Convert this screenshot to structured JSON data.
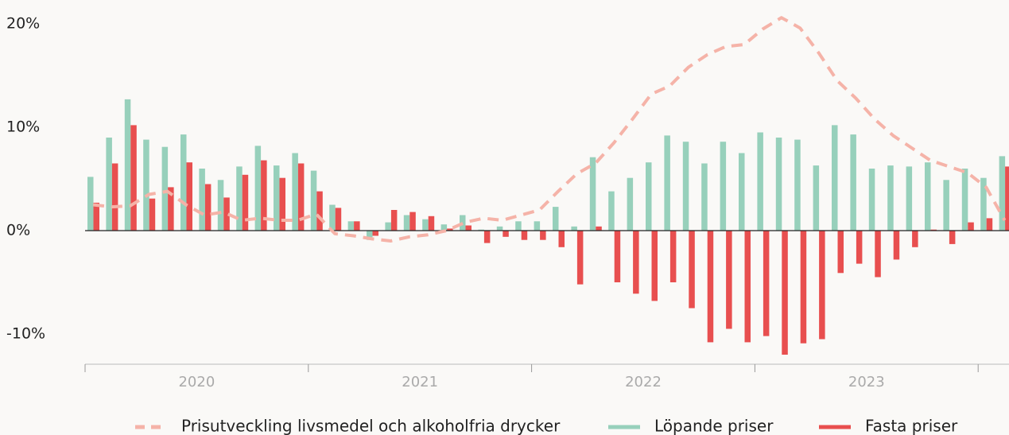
{
  "chart_data": {
    "type": "bar_line",
    "categories": [
      null,
      null,
      null,
      null,
      null,
      null,
      null,
      null,
      null,
      null,
      null,
      null,
      null,
      null,
      null,
      null,
      null,
      null,
      null,
      null,
      null,
      null,
      null,
      null,
      null,
      null,
      null,
      null,
      null,
      null,
      null,
      null,
      null,
      null,
      null,
      null,
      null,
      null,
      null,
      null,
      null,
      null,
      null,
      null,
      null,
      null,
      null,
      null,
      null,
      null
    ],
    "groups": [
      "2020",
      "2021",
      "2022",
      "2023"
    ],
    "series": [
      {
        "name": "Prisutveckling livsmedel och alkoholfria drycker",
        "type": "line",
        "color": "#f5b3a8",
        "values": [
          2.5,
          2.3,
          2.4,
          3.5,
          3.8,
          2.5,
          1.5,
          1.8,
          1.0,
          1.2,
          1.0,
          1.0,
          1.6,
          -0.3,
          -0.5,
          -0.8,
          -1.0,
          -0.6,
          -0.4,
          0.0,
          0.8,
          1.2,
          1.0,
          1.5,
          2.0,
          3.8,
          5.5,
          6.5,
          8.5,
          10.8,
          13.2,
          14.0,
          15.8,
          17.0,
          17.8,
          18.0,
          19.5,
          20.6,
          19.6,
          17.2,
          14.5,
          12.8,
          10.8,
          9.2,
          8.0,
          6.8,
          6.2,
          5.6,
          4.2,
          1.0
        ]
      },
      {
        "name": "Löpande priser",
        "type": "bar",
        "color": "#97d0bb",
        "values": [
          5.2,
          9.0,
          12.7,
          8.8,
          8.1,
          9.3,
          6.0,
          4.9,
          6.2,
          8.2,
          6.3,
          7.5,
          5.8,
          2.5,
          0.9,
          -0.9,
          0.8,
          1.5,
          1.1,
          0.6,
          1.5,
          0.1,
          0.4,
          0.9,
          0.9,
          2.3,
          0.4,
          7.1,
          3.8,
          5.1,
          6.6,
          9.2,
          8.6,
          6.5,
          8.6,
          7.5,
          9.5,
          9.0,
          8.8,
          6.3,
          10.2,
          9.3,
          6.0,
          6.3,
          6.2,
          6.6,
          4.9,
          6.0,
          5.1,
          7.2
        ]
      },
      {
        "name": "Fasta priser",
        "type": "bar",
        "color": "#e84f4f",
        "values": [
          2.7,
          6.5,
          10.2,
          3.1,
          4.2,
          6.6,
          4.5,
          3.2,
          5.4,
          6.8,
          5.1,
          6.5,
          3.8,
          2.2,
          0.9,
          -0.5,
          2.0,
          1.8,
          1.4,
          0.2,
          0.5,
          -1.2,
          -0.6,
          -0.9,
          -0.9,
          -1.6,
          -5.2,
          0.4,
          -5.0,
          -6.1,
          -6.8,
          -5.0,
          -7.5,
          -10.8,
          -9.5,
          -10.8,
          -10.2,
          -12.0,
          -10.9,
          -10.5,
          -4.1,
          -3.2,
          -4.5,
          -2.8,
          -1.6,
          0.1,
          -1.3,
          0.8,
          1.2,
          6.2
        ]
      }
    ],
    "ylim": [
      -12.5,
      22
    ],
    "yticks": [
      {
        "value": 20,
        "label": "20%"
      },
      {
        "value": 10,
        "label": "10%"
      },
      {
        "value": 0,
        "label": "0%"
      },
      {
        "value": -10,
        "label": "-10%"
      }
    ],
    "legend": "bottom"
  }
}
